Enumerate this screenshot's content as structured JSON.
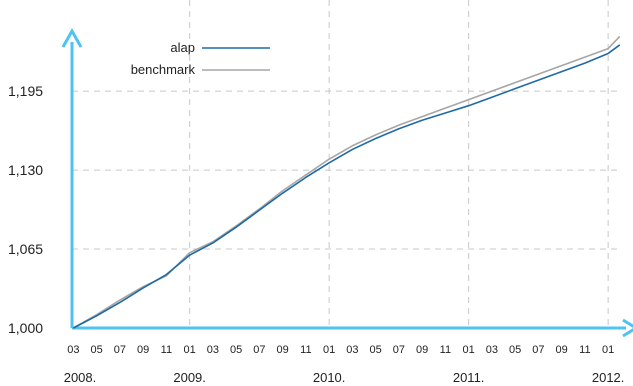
{
  "chart_data": {
    "type": "line",
    "title": "",
    "xlabel": "",
    "ylabel": "",
    "x_range": [
      "2008-03",
      "2012-02"
    ],
    "ylim": [
      1000,
      1270
    ],
    "y_ticks": [
      {
        "value": 1000,
        "label": "1,000"
      },
      {
        "value": 1065,
        "label": "1,065"
      },
      {
        "value": 1130,
        "label": "1,130"
      },
      {
        "value": 1195,
        "label": "1,195"
      }
    ],
    "x_month_ticks": [
      {
        "date": "2008-03",
        "label": "03"
      },
      {
        "date": "2008-05",
        "label": "05"
      },
      {
        "date": "2008-07",
        "label": "07"
      },
      {
        "date": "2008-09",
        "label": "09"
      },
      {
        "date": "2008-11",
        "label": "11"
      },
      {
        "date": "2009-01",
        "label": "01"
      },
      {
        "date": "2009-03",
        "label": "03"
      },
      {
        "date": "2009-05",
        "label": "05"
      },
      {
        "date": "2009-07",
        "label": "07"
      },
      {
        "date": "2009-09",
        "label": "09"
      },
      {
        "date": "2009-11",
        "label": "11"
      },
      {
        "date": "2010-01",
        "label": "01"
      },
      {
        "date": "2010-03",
        "label": "03"
      },
      {
        "date": "2010-05",
        "label": "05"
      },
      {
        "date": "2010-07",
        "label": "07"
      },
      {
        "date": "2010-09",
        "label": "09"
      },
      {
        "date": "2010-11",
        "label": "11"
      },
      {
        "date": "2011-01",
        "label": "01"
      },
      {
        "date": "2011-03",
        "label": "03"
      },
      {
        "date": "2011-05",
        "label": "05"
      },
      {
        "date": "2011-07",
        "label": "07"
      },
      {
        "date": "2011-09",
        "label": "09"
      },
      {
        "date": "2011-11",
        "label": "11"
      },
      {
        "date": "2012-01",
        "label": "01"
      }
    ],
    "x_year_ticks": [
      {
        "date": "2008-01",
        "label": "2008."
      },
      {
        "date": "2009-01",
        "label": "2009."
      },
      {
        "date": "2010-01",
        "label": "2010."
      },
      {
        "date": "2011-01",
        "label": "2011."
      },
      {
        "date": "2012-01",
        "label": "2012."
      }
    ],
    "grid": true,
    "legend_position": "top-left",
    "series": [
      {
        "name": "alap",
        "color": "#1f6aa5",
        "points": [
          [
            "2008-03",
            1000
          ],
          [
            "2008-05",
            1010
          ],
          [
            "2008-07",
            1021
          ],
          [
            "2008-09",
            1033
          ],
          [
            "2008-11",
            1044
          ],
          [
            "2009-01",
            1060
          ],
          [
            "2009-03",
            1070
          ],
          [
            "2009-05",
            1083
          ],
          [
            "2009-07",
            1097
          ],
          [
            "2009-09",
            1111
          ],
          [
            "2009-11",
            1124
          ],
          [
            "2010-01",
            1136
          ],
          [
            "2010-03",
            1147
          ],
          [
            "2010-05",
            1156
          ],
          [
            "2010-07",
            1164
          ],
          [
            "2010-09",
            1171
          ],
          [
            "2010-11",
            1177
          ],
          [
            "2011-01",
            1183
          ],
          [
            "2011-03",
            1190
          ],
          [
            "2011-05",
            1197
          ],
          [
            "2011-07",
            1204
          ],
          [
            "2011-09",
            1211
          ],
          [
            "2011-11",
            1218
          ],
          [
            "2012-01",
            1226
          ],
          [
            "2012-02",
            1233
          ]
        ]
      },
      {
        "name": "benchmark",
        "color": "#a6a6a6",
        "points": [
          [
            "2008-03",
            1000
          ],
          [
            "2008-05",
            1011
          ],
          [
            "2008-07",
            1023
          ],
          [
            "2008-09",
            1034
          ],
          [
            "2008-11",
            1043
          ],
          [
            "2009-01",
            1062
          ],
          [
            "2009-03",
            1071
          ],
          [
            "2009-05",
            1084
          ],
          [
            "2009-07",
            1098
          ],
          [
            "2009-09",
            1113
          ],
          [
            "2009-11",
            1126
          ],
          [
            "2010-01",
            1139
          ],
          [
            "2010-03",
            1150
          ],
          [
            "2010-05",
            1159
          ],
          [
            "2010-07",
            1167
          ],
          [
            "2010-09",
            1174
          ],
          [
            "2010-11",
            1181
          ],
          [
            "2011-01",
            1188
          ],
          [
            "2011-03",
            1195
          ],
          [
            "2011-05",
            1202
          ],
          [
            "2011-07",
            1209
          ],
          [
            "2011-09",
            1216
          ],
          [
            "2011-11",
            1223
          ],
          [
            "2012-01",
            1230
          ],
          [
            "2012-02",
            1240
          ]
        ]
      }
    ]
  }
}
